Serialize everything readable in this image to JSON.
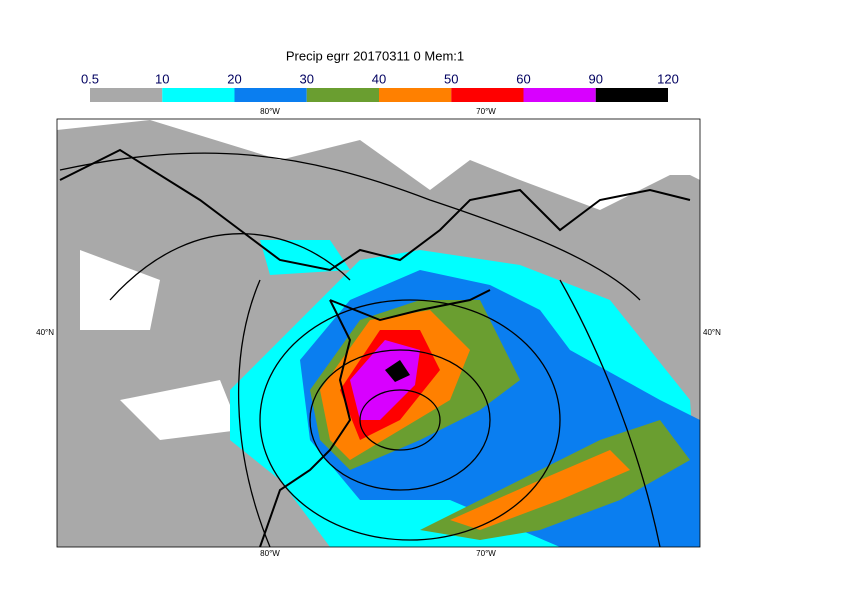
{
  "title": "Precip egrr 20170311 0 Mem:1",
  "colorbar": {
    "levels": [
      0.5,
      10,
      20,
      30,
      40,
      50,
      60,
      90,
      120
    ],
    "colors": [
      "#a9a9a9",
      "#00ffff",
      "#0a7ef0",
      "#6a9e30",
      "#ff8000",
      "#ff0000",
      "#d800ff",
      "#000000"
    ]
  },
  "map": {
    "lon_labels": [
      "80°W",
      "70°W"
    ],
    "lat_labels": [
      "40°N"
    ]
  }
}
